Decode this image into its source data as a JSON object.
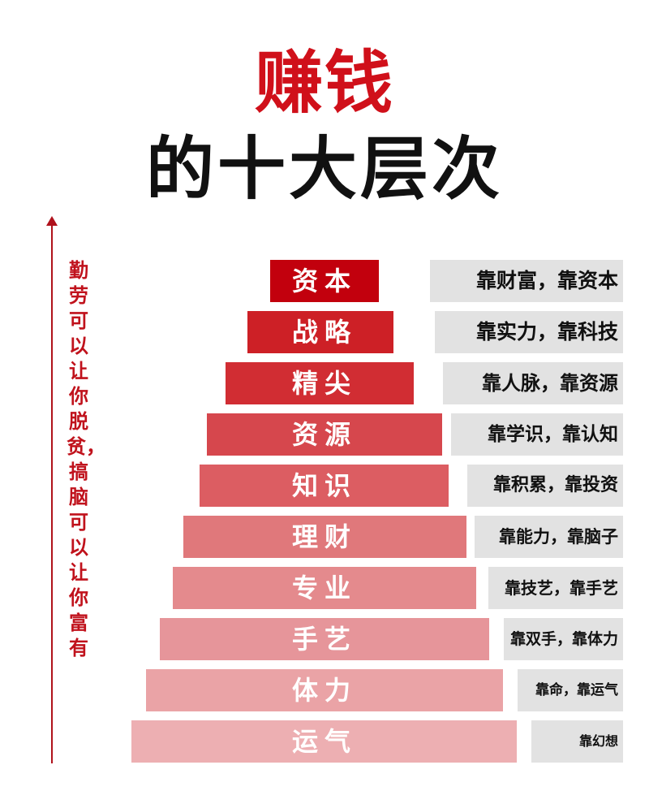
{
  "title": {
    "line1": "赚钱",
    "line2": "的十大层次"
  },
  "side_text": "勤劳可以让你脱贫，搞脑可以让你富有",
  "colors": {
    "title_accent": "#d0101a",
    "arrow": "#b0121c",
    "desc_bg": "#e2e2e2"
  },
  "levels": [
    {
      "label": "资本",
      "desc": "靠财富，靠资本",
      "color": "#c2000d"
    },
    {
      "label": "战略",
      "desc": "靠实力，靠科技",
      "color": "#cd2026"
    },
    {
      "label": "精尖",
      "desc": "靠人脉，靠资源",
      "color": "#d12d33"
    },
    {
      "label": "资源",
      "desc": "靠学识，靠认知",
      "color": "#d6474d"
    },
    {
      "label": "知识",
      "desc": "靠积累，靠投资",
      "color": "#dc5d62"
    },
    {
      "label": "理财",
      "desc": "靠能力，靠脑子",
      "color": "#e0787b"
    },
    {
      "label": "专业",
      "desc": "靠技艺，靠手艺",
      "color": "#e48a8d"
    },
    {
      "label": "手艺",
      "desc": "靠双手，靠体力",
      "color": "#e6959a"
    },
    {
      "label": "体力",
      "desc": "靠命，靠运气",
      "color": "#eaa3a6"
    },
    {
      "label": "运气",
      "desc": "靠幻想",
      "color": "#edafb2"
    }
  ]
}
